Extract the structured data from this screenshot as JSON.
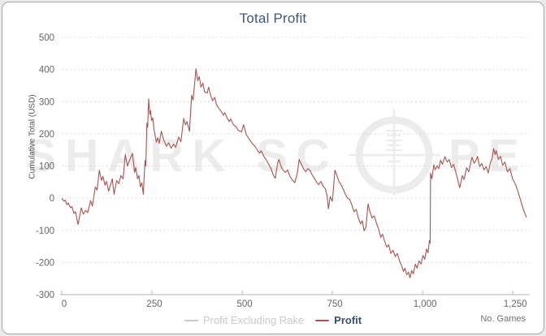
{
  "page": {
    "background": "#ebebeb"
  },
  "card": {
    "background": "#ffffff",
    "border_color": "#a6a6a6"
  },
  "header": {
    "title": "Total Profit",
    "title_color": "#44557b"
  },
  "watermark": {
    "left_text": "SHARK SC",
    "right_text": "PE",
    "color": "#ececec",
    "icon": "scope-reticle"
  },
  "axes": {
    "y_title": "Cumulative Total (USD)",
    "x_title": "No. Games",
    "y_ticks": [
      {
        "label": "500",
        "value": 500
      },
      {
        "label": "400",
        "value": 400
      },
      {
        "label": "300",
        "value": 300
      },
      {
        "label": "200",
        "value": 200
      },
      {
        "label": "100",
        "value": 100
      },
      {
        "label": "0",
        "value": 0
      },
      {
        "label": "-100",
        "value": -100
      },
      {
        "label": "-200",
        "value": -200
      },
      {
        "label": "-300",
        "value": -300
      }
    ],
    "x_ticks": [
      {
        "label": "0",
        "value": 0
      },
      {
        "label": "250",
        "value": 250
      },
      {
        "label": "500",
        "value": 500
      },
      {
        "label": "750",
        "value": 750
      },
      {
        "label": "1,000",
        "value": 1000
      },
      {
        "label": "1,250",
        "value": 1250
      }
    ],
    "grid_color": "#dcdcdc",
    "axis_color": "#b5b5b5",
    "tick_label_color": "#666666"
  },
  "legend": {
    "items": [
      {
        "label": "Profit Excluding Rake",
        "swatch_color": "#c9c9c9",
        "label_color": "#c9c9c9",
        "disabled": true
      },
      {
        "label": "Profit",
        "swatch_color": "#a8544e",
        "label_color": "#3d4f6e",
        "disabled": false
      }
    ]
  },
  "chart_data": {
    "type": "line",
    "title": "Total Profit",
    "xlabel": "No. Games",
    "ylabel": "Cumulative Total (USD)",
    "xlim": [
      0,
      1297
    ],
    "ylim": [
      -300,
      500
    ],
    "grid": "horizontal-dashed",
    "legend_position": "bottom",
    "series": [
      {
        "name": "Profit Excluding Rake",
        "color": "#c9c9c9",
        "visible": false,
        "points": []
      },
      {
        "name": "Profit",
        "color": "#a8544e",
        "visible": true,
        "points": [
          [
            0,
            0
          ],
          [
            6,
            -10
          ],
          [
            10,
            -6
          ],
          [
            14,
            -20
          ],
          [
            18,
            -15
          ],
          [
            24,
            -30
          ],
          [
            28,
            -26
          ],
          [
            34,
            -48
          ],
          [
            38,
            -42
          ],
          [
            45,
            -82
          ],
          [
            50,
            -55
          ],
          [
            54,
            -30
          ],
          [
            60,
            -50
          ],
          [
            66,
            -38
          ],
          [
            72,
            -45
          ],
          [
            80,
            -8
          ],
          [
            85,
            -25
          ],
          [
            93,
            35
          ],
          [
            98,
            25
          ],
          [
            104,
            87
          ],
          [
            110,
            55
          ],
          [
            114,
            68
          ],
          [
            120,
            40
          ],
          [
            124,
            52
          ],
          [
            130,
            22
          ],
          [
            136,
            45
          ],
          [
            140,
            60
          ],
          [
            145,
            12
          ],
          [
            152,
            55
          ],
          [
            158,
            45
          ],
          [
            164,
            70
          ],
          [
            170,
            60
          ],
          [
            176,
            136
          ],
          [
            182,
            100
          ],
          [
            186,
            112
          ],
          [
            196,
            139
          ],
          [
            202,
            80
          ],
          [
            205,
            95
          ],
          [
            210,
            60
          ],
          [
            214,
            70
          ],
          [
            218,
            35
          ],
          [
            222,
            48
          ],
          [
            226,
            12
          ],
          [
            229,
            80
          ],
          [
            231,
            117
          ],
          [
            233,
            100
          ],
          [
            236,
            233
          ],
          [
            238,
            220
          ],
          [
            241,
            308
          ],
          [
            244,
            261
          ],
          [
            246,
            272
          ],
          [
            249,
            241
          ],
          [
            252,
            250
          ],
          [
            256,
            211
          ],
          [
            262,
            174
          ],
          [
            266,
            188
          ],
          [
            270,
            171
          ],
          [
            276,
            208
          ],
          [
            282,
            183
          ],
          [
            290,
            161
          ],
          [
            296,
            172
          ],
          [
            303,
            155
          ],
          [
            310,
            168
          ],
          [
            316,
            158
          ],
          [
            324,
            190
          ],
          [
            330,
            175
          ],
          [
            338,
            248
          ],
          [
            343,
            228
          ],
          [
            347,
            238
          ],
          [
            354,
            208
          ],
          [
            360,
            320
          ],
          [
            364,
            305
          ],
          [
            372,
            402
          ],
          [
            377,
            365
          ],
          [
            381,
            378
          ],
          [
            386,
            345
          ],
          [
            391,
            358
          ],
          [
            396,
            330
          ],
          [
            403,
            327
          ],
          [
            407,
            345
          ],
          [
            413,
            318
          ],
          [
            418,
            303
          ],
          [
            424,
            313
          ],
          [
            429,
            290
          ],
          [
            436,
            278
          ],
          [
            440,
            273
          ],
          [
            448,
            258
          ],
          [
            452,
            266
          ],
          [
            458,
            250
          ],
          [
            464,
            238
          ],
          [
            468,
            246
          ],
          [
            476,
            228
          ],
          [
            484,
            221
          ],
          [
            490,
            210
          ],
          [
            498,
            206
          ],
          [
            504,
            228
          ],
          [
            512,
            196
          ],
          [
            520,
            183
          ],
          [
            528,
            170
          ],
          [
            536,
            160
          ],
          [
            543,
            148
          ],
          [
            548,
            140
          ],
          [
            553,
            147
          ],
          [
            560,
            130
          ],
          [
            566,
            120
          ],
          [
            572,
            108
          ],
          [
            580,
            92
          ],
          [
            586,
            72
          ],
          [
            592,
            62
          ],
          [
            598,
            108
          ],
          [
            602,
            120
          ],
          [
            608,
            98
          ],
          [
            614,
            86
          ],
          [
            620,
            80
          ],
          [
            626,
            88
          ],
          [
            632,
            68
          ],
          [
            638,
            58
          ],
          [
            646,
            48
          ],
          [
            653,
            78
          ],
          [
            658,
            120
          ],
          [
            664,
            105
          ],
          [
            670,
            92
          ],
          [
            676,
            82
          ],
          [
            682,
            92
          ],
          [
            688,
            86
          ],
          [
            694,
            72
          ],
          [
            700,
            62
          ],
          [
            706,
            50
          ],
          [
            712,
            42
          ],
          [
            718,
            52
          ],
          [
            724,
            38
          ],
          [
            730,
            30
          ],
          [
            735,
            10
          ],
          [
            739,
            -33
          ],
          [
            744,
            5
          ],
          [
            750,
            -10
          ],
          [
            757,
            87
          ],
          [
            762,
            72
          ],
          [
            768,
            52
          ],
          [
            774,
            42
          ],
          [
            780,
            28
          ],
          [
            786,
            12
          ],
          [
            792,
            0
          ],
          [
            798,
            -4
          ],
          [
            804,
            -22
          ],
          [
            810,
            -42
          ],
          [
            816,
            -35
          ],
          [
            822,
            -62
          ],
          [
            828,
            -80
          ],
          [
            833,
            -70
          ],
          [
            838,
            -102
          ],
          [
            843,
            -90
          ],
          [
            849,
            -18
          ],
          [
            854,
            -42
          ],
          [
            860,
            -62
          ],
          [
            866,
            -55
          ],
          [
            872,
            -78
          ],
          [
            878,
            -95
          ],
          [
            884,
            -122
          ],
          [
            889,
            -112
          ],
          [
            895,
            -135
          ],
          [
            901,
            -152
          ],
          [
            906,
            -145
          ],
          [
            912,
            -172
          ],
          [
            918,
            -162
          ],
          [
            924,
            -182
          ],
          [
            930,
            -172
          ],
          [
            936,
            -195
          ],
          [
            942,
            -210
          ],
          [
            947,
            -228
          ],
          [
            951,
            -218
          ],
          [
            956,
            -238
          ],
          [
            961,
            -230
          ],
          [
            965,
            -248
          ],
          [
            970,
            -225
          ],
          [
            974,
            -236
          ],
          [
            980,
            -205
          ],
          [
            985,
            -218
          ],
          [
            990,
            -195
          ],
          [
            996,
            -205
          ],
          [
            1001,
            -178
          ],
          [
            1006,
            -190
          ],
          [
            1011,
            -158
          ],
          [
            1015,
            -170
          ],
          [
            1019,
            -132
          ],
          [
            1021,
            -140
          ],
          [
            1022,
            78
          ],
          [
            1026,
            60
          ],
          [
            1031,
            104
          ],
          [
            1035,
            88
          ],
          [
            1040,
            100
          ],
          [
            1045,
            92
          ],
          [
            1050,
            118
          ],
          [
            1055,
            105
          ],
          [
            1062,
            129
          ],
          [
            1068,
            112
          ],
          [
            1074,
            120
          ],
          [
            1080,
            95
          ],
          [
            1086,
            105
          ],
          [
            1092,
            80
          ],
          [
            1098,
            55
          ],
          [
            1103,
            32
          ],
          [
            1110,
            70
          ],
          [
            1115,
            58
          ],
          [
            1122,
            95
          ],
          [
            1128,
            82
          ],
          [
            1137,
            127
          ],
          [
            1143,
            108
          ],
          [
            1148,
            118
          ],
          [
            1152,
            130
          ],
          [
            1158,
            98
          ],
          [
            1164,
            108
          ],
          [
            1170,
            88
          ],
          [
            1176,
            98
          ],
          [
            1182,
            78
          ],
          [
            1188,
            110
          ],
          [
            1193,
            125
          ],
          [
            1197,
            154
          ],
          [
            1201,
            135
          ],
          [
            1204,
            148
          ],
          [
            1210,
            120
          ],
          [
            1216,
            130
          ],
          [
            1222,
            102
          ],
          [
            1228,
            112
          ],
          [
            1235,
            82
          ],
          [
            1242,
            92
          ],
          [
            1250,
            58
          ],
          [
            1258,
            42
          ],
          [
            1265,
            18
          ],
          [
            1272,
            -8
          ],
          [
            1280,
            -38
          ],
          [
            1288,
            -60
          ]
        ]
      }
    ]
  }
}
